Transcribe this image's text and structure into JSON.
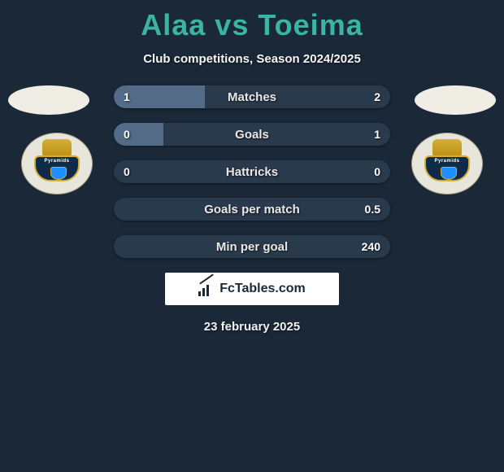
{
  "header": {
    "title": "Alaa vs Toeima",
    "subtitle": "Club competitions, Season 2024/2025",
    "title_color": "#3cb4a4"
  },
  "colors": {
    "page_bg": "#1a2838",
    "bar_track": "#2a3a4d",
    "bar_fill": "#536b86",
    "text": "#ffffff"
  },
  "player_left": {
    "name": "Alaa",
    "club": "Pyramids"
  },
  "player_right": {
    "name": "Toeima",
    "club": "Pyramids"
  },
  "stats": [
    {
      "label": "Matches",
      "left_value": "1",
      "right_value": "2",
      "left_pct": 33,
      "right_pct": 0
    },
    {
      "label": "Goals",
      "left_value": "0",
      "right_value": "1",
      "left_pct": 18,
      "right_pct": 0
    },
    {
      "label": "Hattricks",
      "left_value": "0",
      "right_value": "0",
      "left_pct": 0,
      "right_pct": 0
    },
    {
      "label": "Goals per match",
      "left_value": "",
      "right_value": "0.5",
      "left_pct": 0,
      "right_pct": 0
    },
    {
      "label": "Min per goal",
      "left_value": "",
      "right_value": "240",
      "left_pct": 0,
      "right_pct": 0
    }
  ],
  "brand": {
    "text": "FcTables.com"
  },
  "footer": {
    "date": "23 february 2025"
  }
}
